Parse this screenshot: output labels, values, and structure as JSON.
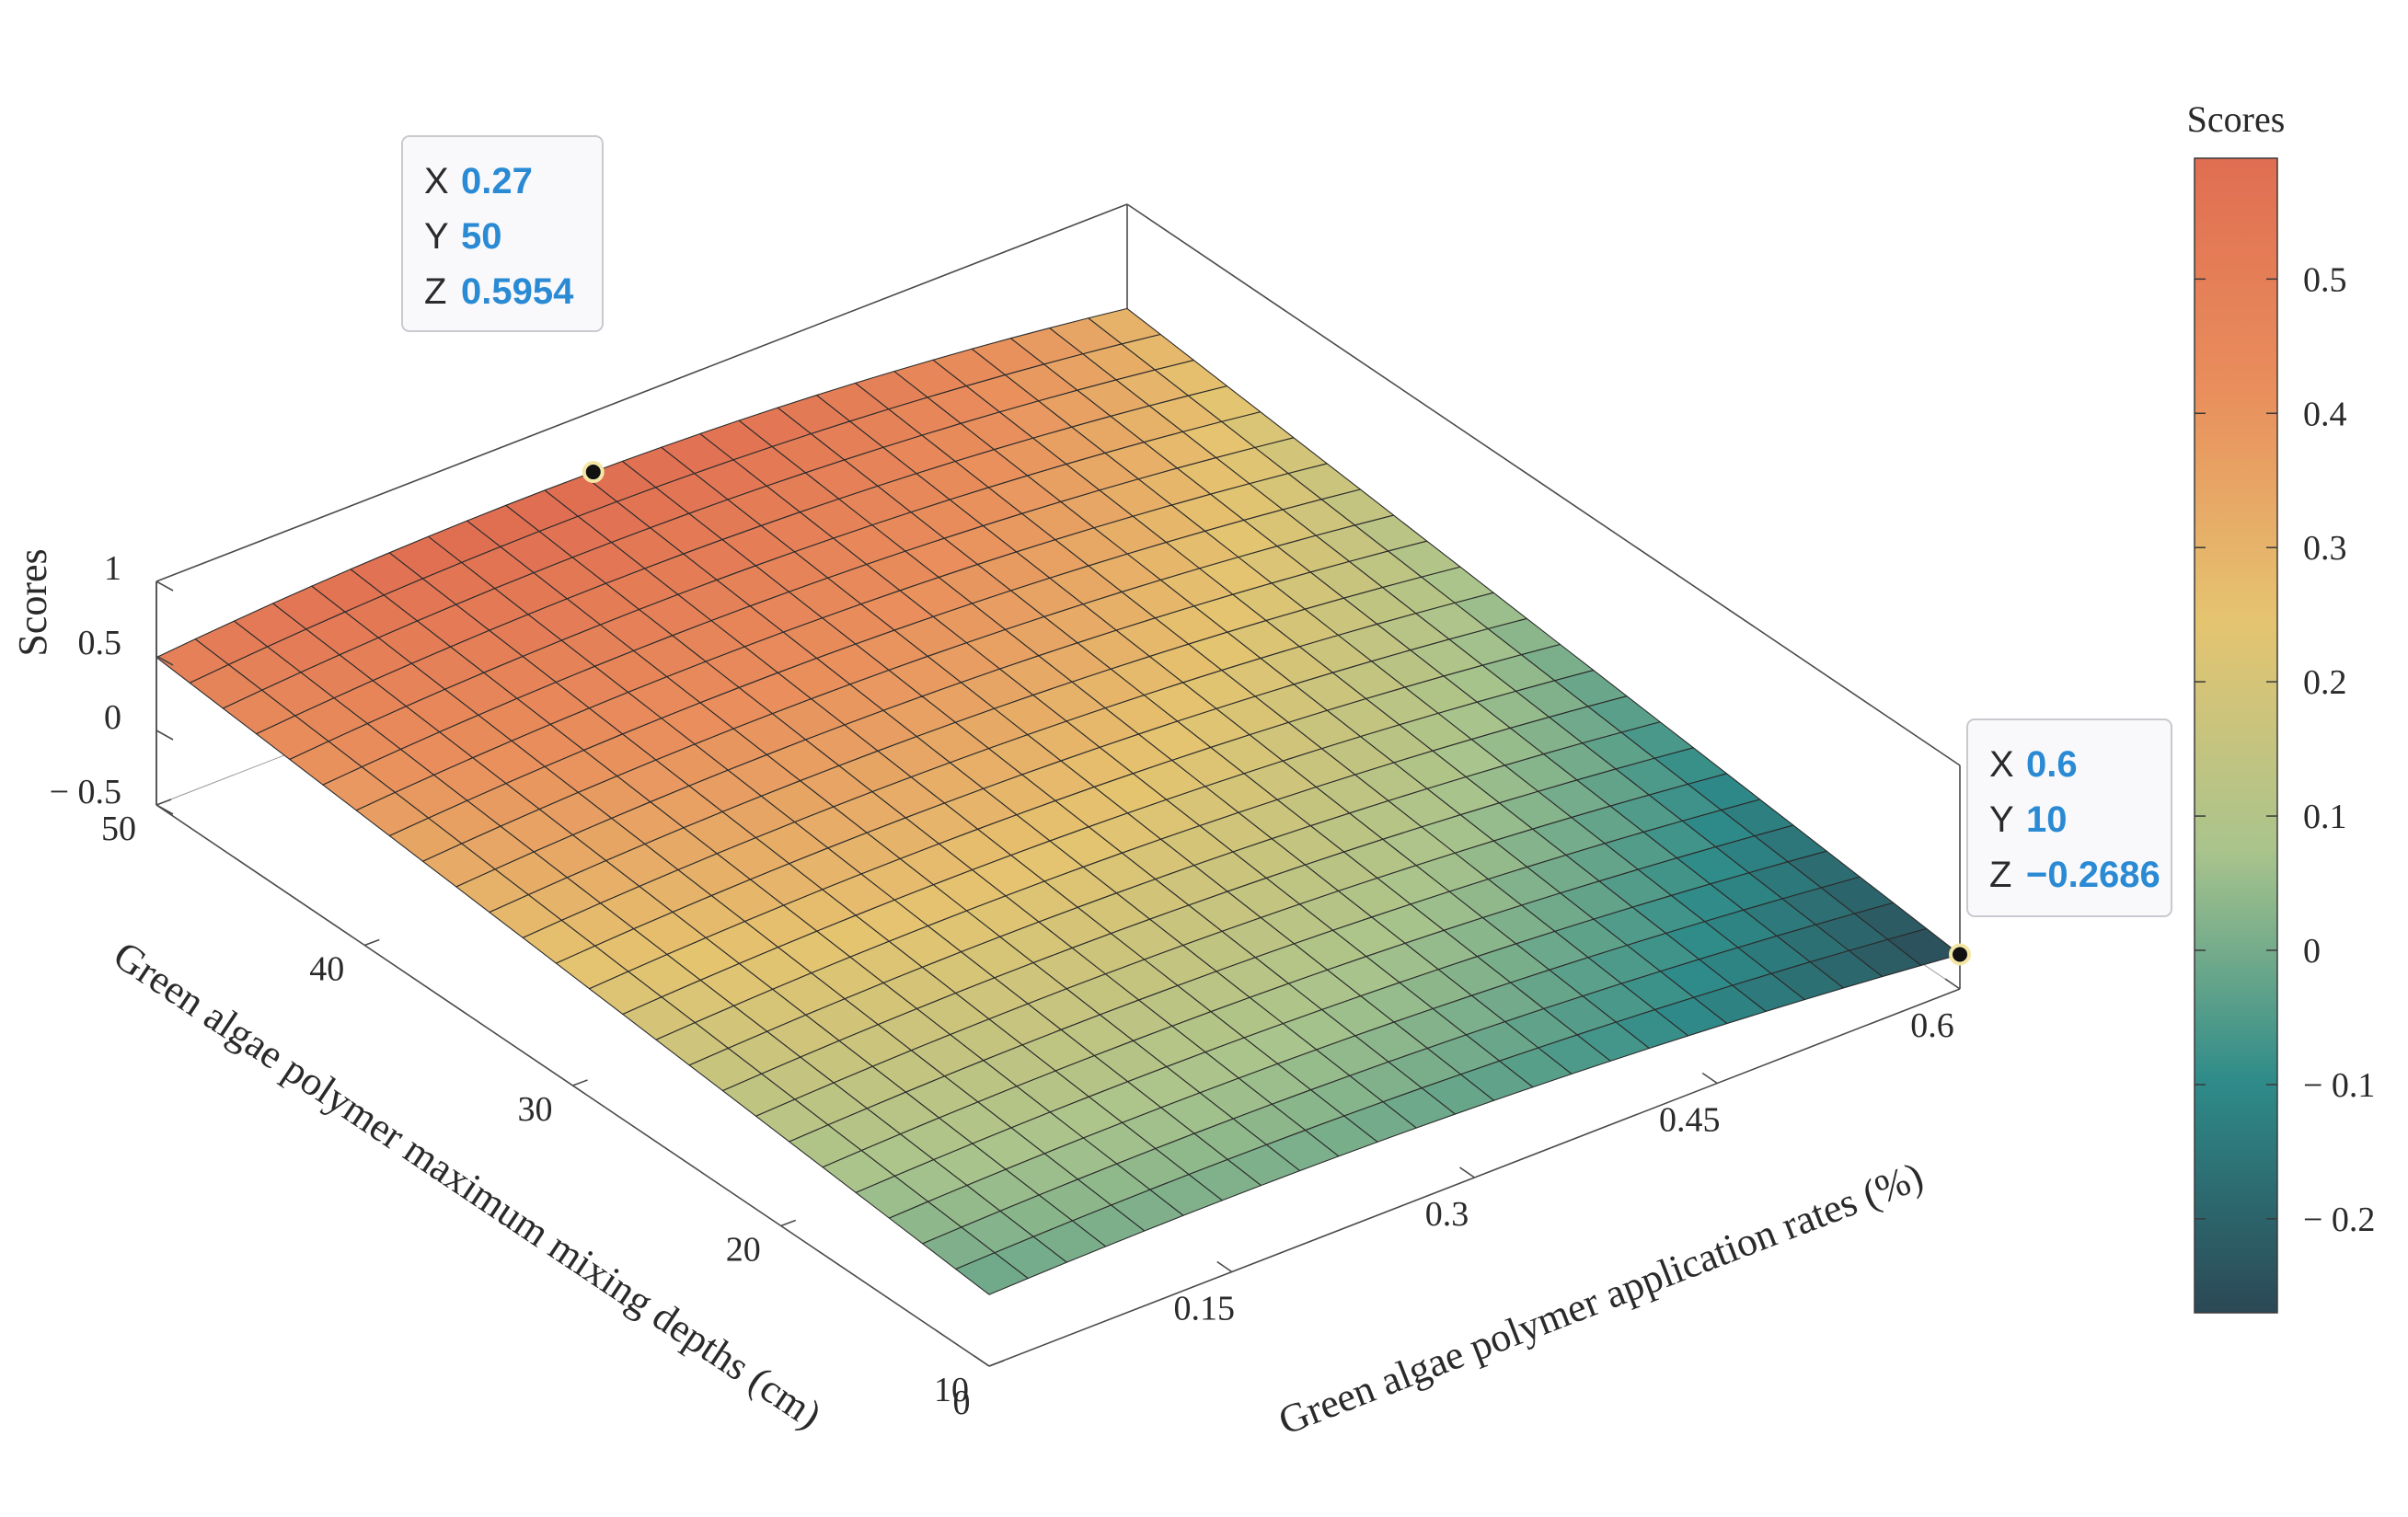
{
  "chart_data": {
    "type": "surface3d",
    "title": "",
    "zlabel": "Scores",
    "xlabel": "Green algae polymer application rates (%)",
    "ylabel": "Green algae polymer maximum mixing depths (cm)",
    "x_range": [
      0,
      0.6
    ],
    "y_range": [
      10,
      50
    ],
    "z_range": [
      -0.5,
      1
    ],
    "x_ticks": [
      "0",
      "0.15",
      "0.3",
      "0.45",
      "0.6"
    ],
    "y_ticks": [
      "10",
      "20",
      "30",
      "40",
      "50"
    ],
    "z_ticks": [
      "− 0.5",
      "0",
      "0.5",
      "1"
    ],
    "grid_divisions": 25,
    "corner_values": {
      "x0_y10": -0.02,
      "x0_y50": 0.49,
      "x0_6_y10": -0.2686,
      "x0_6_y50": 0.3
    },
    "peak_point": {
      "x": 0.27,
      "y": 50,
      "z": 0.5954
    },
    "colorbar": {
      "title": "Scores",
      "range": [
        -0.27,
        0.59
      ],
      "ticks": [
        "− 0.2",
        "− 0.1",
        "0",
        "0.1",
        "0.2",
        "0.3",
        "0.4",
        "0.5"
      ],
      "colors": [
        "#2b4855",
        "#2e8b89",
        "#a9c48c",
        "#e5c470",
        "#e98e5c",
        "#e06e52"
      ]
    },
    "datatips": [
      {
        "x_label": "X",
        "x_value": "0.27",
        "y_label": "Y",
        "y_value": "50",
        "z_label": "Z",
        "z_value": "0.5954"
      },
      {
        "x_label": "X",
        "x_value": "0.6",
        "y_label": "Y",
        "y_value": "10",
        "z_label": "Z",
        "z_value": "−0.2686"
      }
    ]
  }
}
